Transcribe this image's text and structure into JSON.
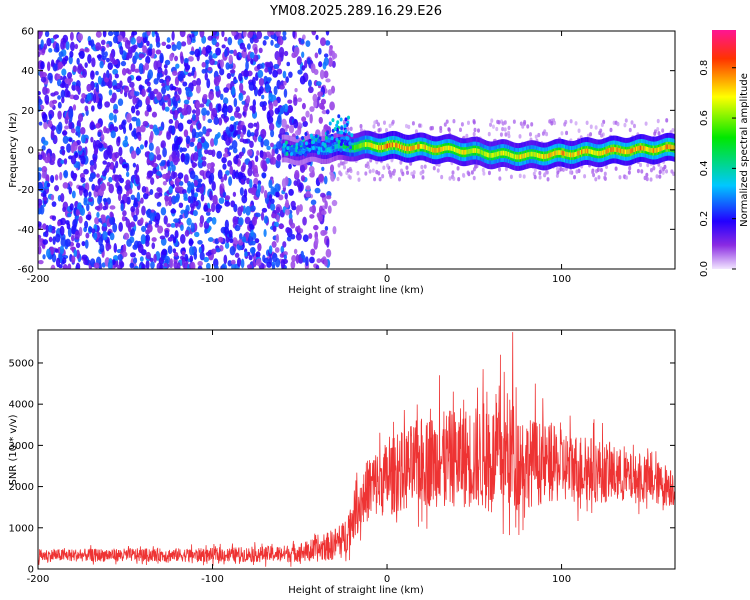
{
  "title": "YM08.2025.289.16.29.E26",
  "chart_data": [
    {
      "type": "heatmap",
      "name": "spectrogram",
      "xlabel": "Height of straight line (km)",
      "ylabel": "Frequency (Hz)",
      "xlim": [
        -200,
        165
      ],
      "ylim": [
        -60,
        60
      ],
      "xticks": [
        -200,
        -100,
        0,
        100
      ],
      "yticks": [
        -60,
        -40,
        -20,
        0,
        20,
        40,
        60
      ],
      "colorbar": {
        "label": "Normalized spectral amplitude",
        "range": [
          0,
          0.95
        ],
        "ticks": [
          0,
          0.2,
          0.4,
          0.6,
          0.8
        ],
        "tick_labels": [
          "0.0",
          "0.2",
          "0.4",
          "0.6",
          "0.8"
        ],
        "colors": [
          "#f2e6ff",
          "#8a2be2",
          "#2200ff",
          "#00c8ff",
          "#00e800",
          "#ffff00",
          "#ff3300",
          "#ff1493"
        ]
      },
      "features": {
        "noise_region_x": [
          -200,
          -30
        ],
        "noise_level": 0.25,
        "signal_track": [
          {
            "x": -50,
            "freq": 0,
            "amp": 0.3
          },
          {
            "x": -30,
            "freq": 1,
            "amp": 0.4
          },
          {
            "x": -20,
            "freq": 2,
            "amp": 0.6
          },
          {
            "x": 0,
            "freq": 2,
            "amp": 0.85
          },
          {
            "x": 20,
            "freq": 1,
            "amp": 0.8
          },
          {
            "x": 40,
            "freq": 0,
            "amp": 0.75
          },
          {
            "x": 60,
            "freq": -2,
            "amp": 0.7
          },
          {
            "x": 80,
            "freq": -3,
            "amp": 0.75
          },
          {
            "x": 100,
            "freq": -2,
            "amp": 0.8
          },
          {
            "x": 120,
            "freq": -1,
            "amp": 0.8
          },
          {
            "x": 140,
            "freq": 0,
            "amp": 0.85
          },
          {
            "x": 165,
            "freq": 1,
            "amp": 0.85
          }
        ]
      }
    },
    {
      "type": "line",
      "name": "snr",
      "xlabel": "Height of straight line (km)",
      "ylabel": "SNR (10 * v/v)",
      "xlim": [
        -200,
        165
      ],
      "ylim": [
        0,
        5800
      ],
      "xticks": [
        -200,
        -100,
        0,
        100
      ],
      "yticks": [
        0,
        1000,
        2000,
        3000,
        4000,
        5000
      ],
      "color": "#ee3333",
      "series": [
        {
          "name": "SNR",
          "envelope": {
            "x": [
              -200,
              -150,
              -100,
              -60,
              -40,
              -25,
              -18,
              -10,
              0,
              20,
              40,
              60,
              70,
              80,
              100,
              120,
              140,
              165
            ],
            "mean": [
              330,
              340,
              340,
              370,
              450,
              700,
              1400,
              2000,
              2200,
              2600,
              2700,
              2700,
              2800,
              2600,
              2500,
              2400,
              2200,
              2000
            ],
            "spread": [
              150,
              160,
              170,
              200,
              280,
              450,
              600,
              800,
              900,
              1100,
              1200,
              1300,
              1400,
              1100,
              900,
              800,
              600,
              500
            ],
            "peaks": [
              {
                "x": 30,
                "y": 4700
              },
              {
                "x": 55,
                "y": 4850
              },
              {
                "x": 65,
                "y": 5200
              },
              {
                "x": 72,
                "y": 5750
              },
              {
                "x": 85,
                "y": 4500
              }
            ]
          }
        }
      ]
    }
  ]
}
